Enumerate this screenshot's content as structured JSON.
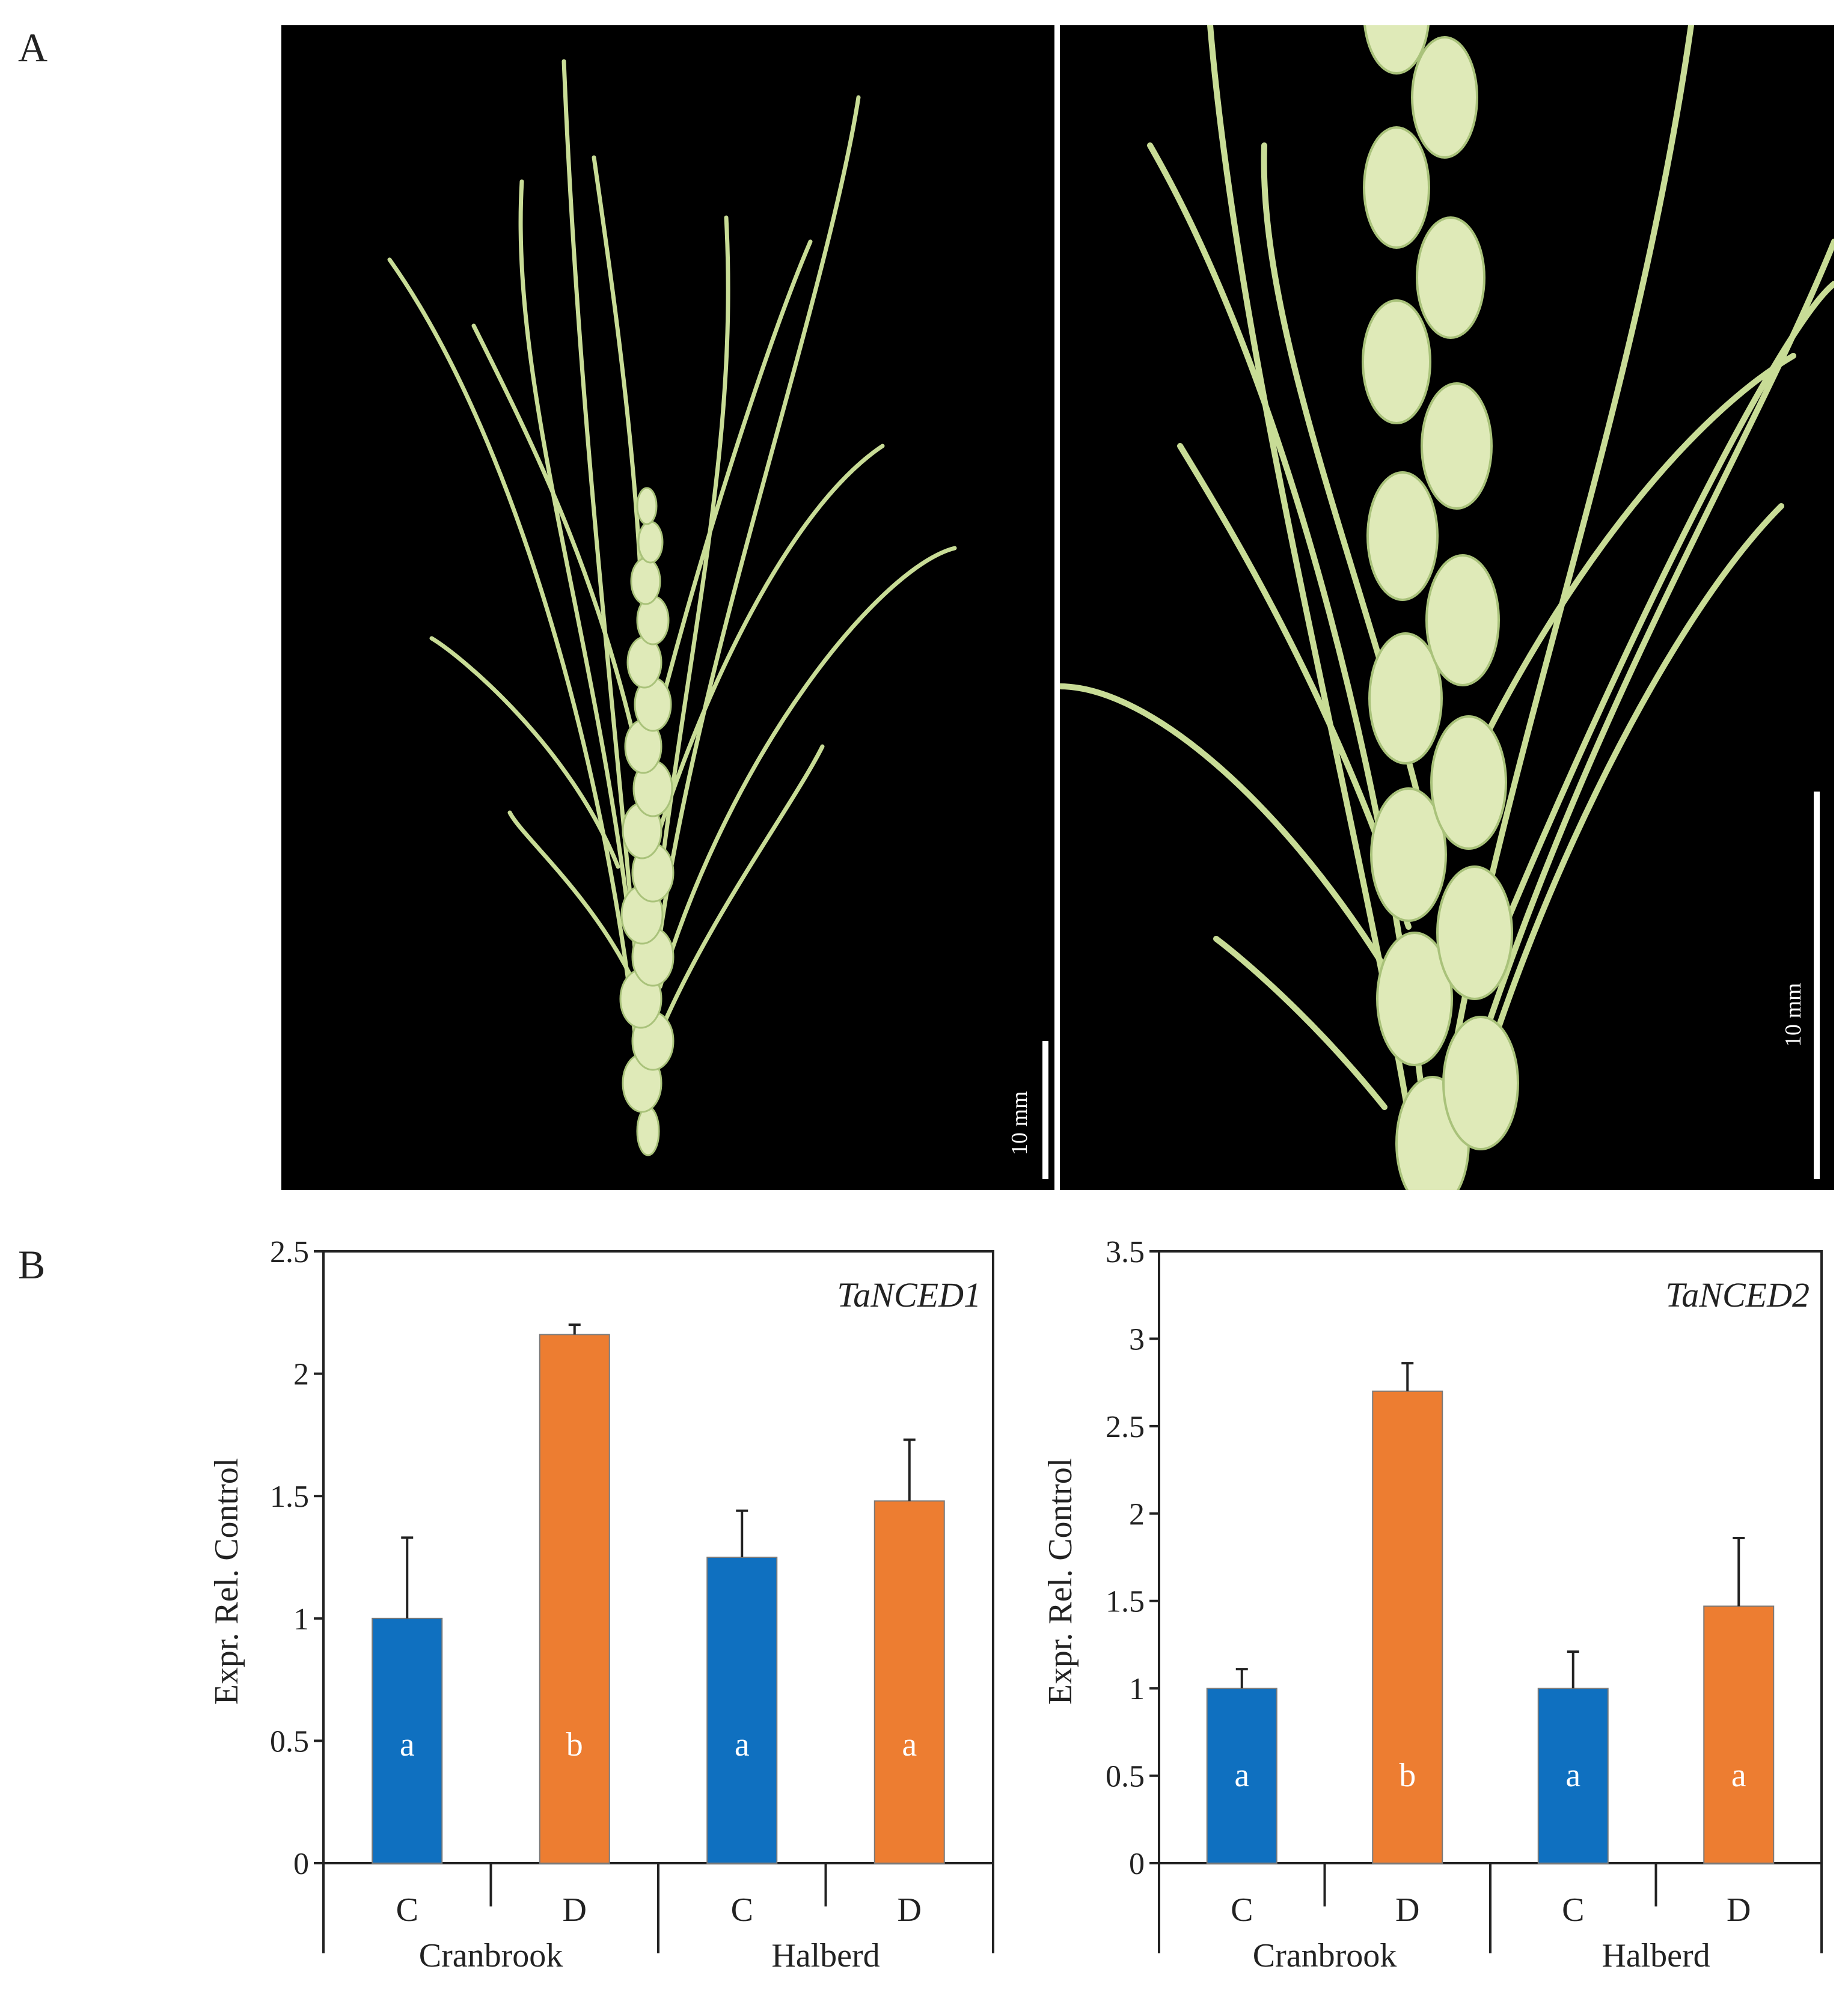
{
  "figure": {
    "panel_a_label": "A",
    "panel_b_label": "B",
    "photo_left": {
      "scale_bar_label": "10 mm"
    },
    "photo_right": {
      "scale_bar_label": "10 mm"
    }
  },
  "colors": {
    "control": "#0f70c0",
    "drought": "#ed7d31",
    "photo_bg": "#000000",
    "spike": "#c8dc96"
  },
  "chart_data": [
    {
      "type": "bar",
      "title": "TaNCED1",
      "ylabel": "Expr. Rel. Control",
      "ylim": [
        0,
        2.5
      ],
      "yticks": [
        0,
        0.5,
        1,
        1.5,
        2,
        2.5
      ],
      "ytick_labels": [
        "0",
        "0.5",
        "1",
        "1.5",
        "2",
        "2.5"
      ],
      "categories": [
        "C",
        "D",
        "C",
        "D"
      ],
      "groups": [
        "Cranbrook",
        "Halberd"
      ],
      "values": [
        1.0,
        2.16,
        1.25,
        1.48
      ],
      "errors": [
        0.33,
        0.04,
        0.19,
        0.25
      ],
      "letters": [
        "a",
        "b",
        "a",
        "a"
      ]
    },
    {
      "type": "bar",
      "title": "TaNCED2",
      "ylabel": "Expr. Rel. Control",
      "ylim": [
        0,
        3.5
      ],
      "yticks": [
        0,
        0.5,
        1,
        1.5,
        2,
        2.5,
        3,
        3.5
      ],
      "ytick_labels": [
        "0",
        "0.5",
        "1",
        "1.5",
        "2",
        "2.5",
        "3",
        "3.5"
      ],
      "categories": [
        "C",
        "D",
        "C",
        "D"
      ],
      "groups": [
        "Cranbrook",
        "Halberd"
      ],
      "values": [
        1.0,
        2.7,
        1.0,
        1.47
      ],
      "errors": [
        0.11,
        0.16,
        0.21,
        0.39
      ],
      "letters": [
        "a",
        "b",
        "a",
        "a"
      ]
    }
  ]
}
